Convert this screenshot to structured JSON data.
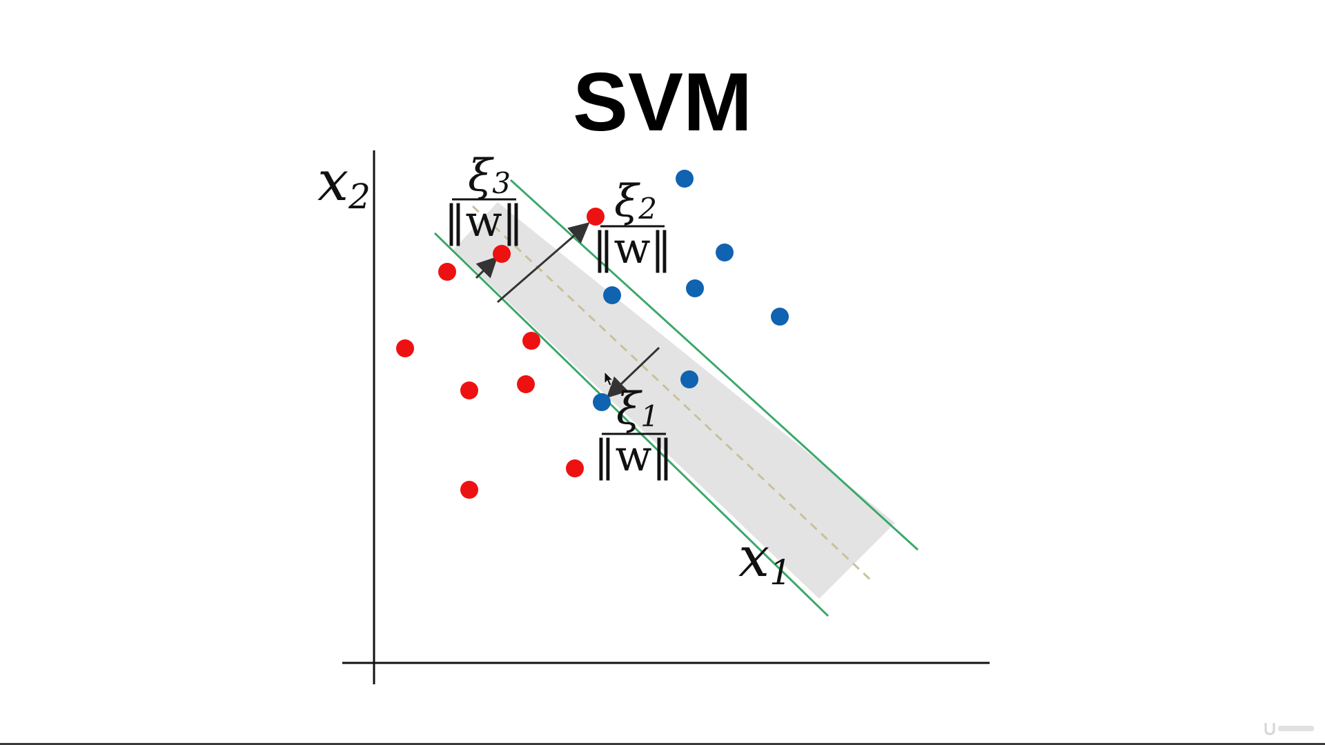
{
  "title": "SVM",
  "axes": {
    "x_label_base": "x",
    "x_label_sub": "1",
    "y_label_base": "x",
    "y_label_sub": "2"
  },
  "annotations": {
    "xi3": {
      "symbol": "ξ",
      "sub": "3",
      "denominator": "‖w‖"
    },
    "xi2": {
      "symbol": "ξ",
      "sub": "2",
      "denominator": "‖w‖"
    },
    "xi1": {
      "symbol": "ξ",
      "sub": "1",
      "denominator": "‖w‖"
    }
  },
  "colors": {
    "class_red": "#ee1111",
    "class_blue": "#0f63b0",
    "margin_line": "#3aa86a",
    "margin_band": "#e3e3e3",
    "hyperplane": "#c9c09a",
    "axis": "#111111",
    "arrow": "#333333"
  },
  "points": {
    "red": [
      [
        648,
        394
      ],
      [
        587,
        505
      ],
      [
        680,
        566
      ],
      [
        762,
        557
      ],
      [
        680,
        710
      ],
      [
        833,
        679
      ],
      [
        863,
        314
      ],
      [
        727,
        368
      ],
      [
        770,
        494
      ]
    ],
    "blue": [
      [
        992,
        259
      ],
      [
        1050,
        366
      ],
      [
        1007,
        418
      ],
      [
        1130,
        459
      ],
      [
        887,
        428
      ],
      [
        999,
        550
      ],
      [
        872,
        583
      ]
    ]
  },
  "watermark_icon": "udemy-logo"
}
